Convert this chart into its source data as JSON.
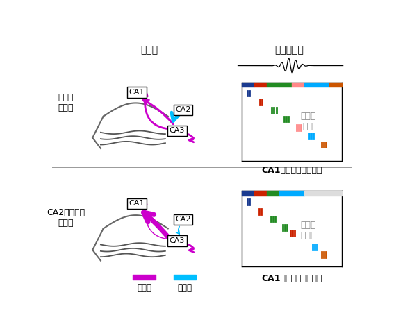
{
  "title_model": "モデル",
  "title_ripple": "リップル波",
  "label_untreated": "未処置\nマウス",
  "label_ca2inact": "CA2不活性化\nマウス",
  "label_ca1_replay1": "CA1ニューロンの再生",
  "label_ca1_replay2": "CA1ニューロンの再生",
  "label_correct": "正確に\n再生",
  "label_incorrect": "再生は\n不正確",
  "label_inhibitory": "抑制性",
  "label_excitatory": "興奋性",
  "color_inhibitory": "#cc00cc",
  "color_excitatory": "#00bfff",
  "color_blue": "#1a3a8f",
  "color_red": "#cc2200",
  "color_green": "#228B22",
  "color_pink": "#ff8888",
  "color_cyan": "#00aaff",
  "color_orange": "#cc5500",
  "color_gray": "#aaaaaa",
  "bg_color": "#ffffff",
  "seq_colors_top": [
    "#1a3a8f",
    "#cc2200",
    "#228B22",
    "#228B22",
    "#ff8888",
    "#00aaff",
    "#00aaff",
    "#cc5500"
  ],
  "seq_colors_bottom": [
    "#1a3a8f",
    "#cc2200",
    "#228B22",
    "#00aaff",
    "#00aaff",
    "#dddddd",
    "#dddddd",
    "#dddddd"
  ]
}
